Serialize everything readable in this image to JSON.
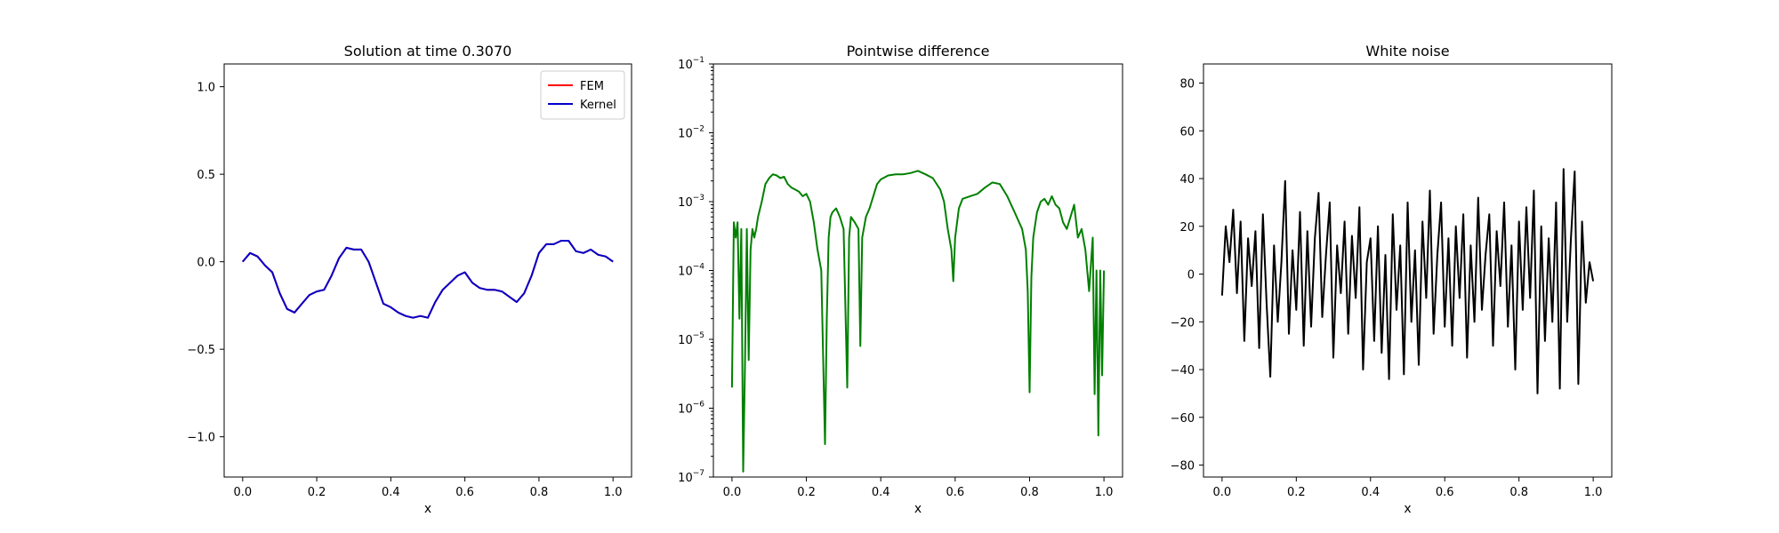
{
  "chart_data": [
    {
      "type": "line",
      "title": "Solution at time 0.3070",
      "xlabel": "x",
      "ylabel": "",
      "xlim": [
        -0.05,
        1.05
      ],
      "ylim": [
        -1.23,
        1.13
      ],
      "x_ticks": [
        "0.0",
        "0.2",
        "0.4",
        "0.6",
        "0.8",
        "1.0"
      ],
      "y_ticks": [
        "−1.0",
        "−0.5",
        "0.0",
        "0.5",
        "1.0"
      ],
      "y_tick_values": [
        -1.0,
        -0.5,
        0.0,
        0.5,
        1.0
      ],
      "grid": false,
      "legend": {
        "position": "top-right",
        "entries": [
          "FEM",
          "Kernel"
        ]
      },
      "series": [
        {
          "name": "FEM",
          "color": "#ff0000",
          "x": [
            0.0,
            0.02,
            0.04,
            0.06,
            0.08,
            0.1,
            0.12,
            0.14,
            0.16,
            0.18,
            0.2,
            0.22,
            0.24,
            0.26,
            0.28,
            0.3,
            0.32,
            0.34,
            0.36,
            0.38,
            0.4,
            0.42,
            0.44,
            0.46,
            0.48,
            0.5,
            0.52,
            0.54,
            0.56,
            0.58,
            0.6,
            0.62,
            0.64,
            0.66,
            0.68,
            0.7,
            0.72,
            0.74,
            0.76,
            0.78,
            0.8,
            0.82,
            0.84,
            0.86,
            0.88,
            0.9,
            0.92,
            0.94,
            0.96,
            0.98,
            1.0
          ],
          "y": [
            0.0,
            0.05,
            0.03,
            -0.02,
            -0.06,
            -0.18,
            -0.27,
            -0.29,
            -0.24,
            -0.19,
            -0.17,
            -0.16,
            -0.08,
            0.02,
            0.08,
            0.07,
            0.07,
            0.0,
            -0.12,
            -0.24,
            -0.26,
            -0.29,
            -0.31,
            -0.32,
            -0.31,
            -0.32,
            -0.23,
            -0.16,
            -0.12,
            -0.08,
            -0.06,
            -0.12,
            -0.15,
            -0.16,
            -0.16,
            -0.17,
            -0.2,
            -0.23,
            -0.18,
            -0.08,
            0.05,
            0.1,
            0.1,
            0.12,
            0.12,
            0.06,
            0.05,
            0.07,
            0.04,
            0.03,
            0.0
          ]
        },
        {
          "name": "Kernel",
          "color": "#0000cc",
          "x": [
            0.0,
            0.02,
            0.04,
            0.06,
            0.08,
            0.1,
            0.12,
            0.14,
            0.16,
            0.18,
            0.2,
            0.22,
            0.24,
            0.26,
            0.28,
            0.3,
            0.32,
            0.34,
            0.36,
            0.38,
            0.4,
            0.42,
            0.44,
            0.46,
            0.48,
            0.5,
            0.52,
            0.54,
            0.56,
            0.58,
            0.6,
            0.62,
            0.64,
            0.66,
            0.68,
            0.7,
            0.72,
            0.74,
            0.76,
            0.78,
            0.8,
            0.82,
            0.84,
            0.86,
            0.88,
            0.9,
            0.92,
            0.94,
            0.96,
            0.98,
            1.0
          ],
          "y": [
            0.0,
            0.05,
            0.03,
            -0.02,
            -0.06,
            -0.18,
            -0.27,
            -0.29,
            -0.24,
            -0.19,
            -0.17,
            -0.16,
            -0.08,
            0.02,
            0.08,
            0.07,
            0.07,
            0.0,
            -0.12,
            -0.24,
            -0.26,
            -0.29,
            -0.31,
            -0.32,
            -0.31,
            -0.32,
            -0.23,
            -0.16,
            -0.12,
            -0.08,
            -0.06,
            -0.12,
            -0.15,
            -0.16,
            -0.16,
            -0.17,
            -0.2,
            -0.23,
            -0.18,
            -0.08,
            0.05,
            0.1,
            0.1,
            0.12,
            0.12,
            0.06,
            0.05,
            0.07,
            0.04,
            0.03,
            0.0
          ]
        }
      ]
    },
    {
      "type": "line",
      "title": "Pointwise difference",
      "xlabel": "x",
      "ylabel": "",
      "y_scale": "log",
      "xlim": [
        -0.05,
        1.05
      ],
      "ylim": [
        1e-07,
        0.1
      ],
      "x_ticks": [
        "0.0",
        "0.2",
        "0.4",
        "0.6",
        "0.8",
        "1.0"
      ],
      "y_ticks": [
        {
          "base": "10",
          "exp": "−7",
          "value": 1e-07
        },
        {
          "base": "10",
          "exp": "−6",
          "value": 1e-06
        },
        {
          "base": "10",
          "exp": "−5",
          "value": 1e-05
        },
        {
          "base": "10",
          "exp": "−4",
          "value": 0.0001
        },
        {
          "base": "10",
          "exp": "−3",
          "value": 0.001
        },
        {
          "base": "10",
          "exp": "−2",
          "value": 0.01
        },
        {
          "base": "10",
          "exp": "−1",
          "value": 0.1
        }
      ],
      "grid": false,
      "series": [
        {
          "color": "#008000",
          "x": [
            0.0,
            0.005,
            0.01,
            0.015,
            0.02,
            0.025,
            0.03,
            0.035,
            0.04,
            0.045,
            0.05,
            0.055,
            0.06,
            0.065,
            0.07,
            0.08,
            0.09,
            0.1,
            0.11,
            0.12,
            0.13,
            0.14,
            0.15,
            0.16,
            0.17,
            0.18,
            0.19,
            0.2,
            0.21,
            0.22,
            0.23,
            0.24,
            0.25,
            0.255,
            0.26,
            0.265,
            0.27,
            0.28,
            0.29,
            0.3,
            0.31,
            0.315,
            0.32,
            0.33,
            0.34,
            0.345,
            0.35,
            0.36,
            0.37,
            0.38,
            0.39,
            0.4,
            0.42,
            0.44,
            0.46,
            0.48,
            0.5,
            0.52,
            0.54,
            0.56,
            0.57,
            0.58,
            0.59,
            0.595,
            0.6,
            0.61,
            0.62,
            0.64,
            0.66,
            0.68,
            0.7,
            0.72,
            0.74,
            0.76,
            0.78,
            0.79,
            0.795,
            0.8,
            0.805,
            0.81,
            0.82,
            0.83,
            0.84,
            0.85,
            0.86,
            0.87,
            0.88,
            0.89,
            0.9,
            0.91,
            0.92,
            0.93,
            0.94,
            0.95,
            0.96,
            0.97,
            0.975,
            0.98,
            0.985,
            0.99,
            0.995,
            1.0
          ],
          "y": [
            2e-06,
            0.0005,
            0.0003,
            0.0005,
            2e-05,
            0.0004,
            1.2e-07,
            4e-06,
            0.0004,
            5e-06,
            0.0002,
            0.0004,
            0.0003,
            0.0004,
            0.0006,
            0.001,
            0.0018,
            0.0022,
            0.0025,
            0.0024,
            0.0022,
            0.0023,
            0.0018,
            0.0016,
            0.0015,
            0.0014,
            0.0012,
            0.0013,
            0.001,
            0.0005,
            0.0002,
            0.0001,
            3e-07,
            2e-05,
            0.0003,
            0.0006,
            0.0007,
            0.0008,
            0.0006,
            0.0004,
            2e-06,
            0.0003,
            0.0006,
            0.0005,
            0.0004,
            8e-06,
            0.0003,
            0.0006,
            0.0008,
            0.0012,
            0.0018,
            0.0021,
            0.0024,
            0.0025,
            0.0025,
            0.0026,
            0.0028,
            0.0025,
            0.0022,
            0.0015,
            0.001,
            0.0004,
            0.0002,
            7e-05,
            0.0003,
            0.0008,
            0.0011,
            0.0012,
            0.0013,
            0.0016,
            0.0019,
            0.0018,
            0.0012,
            0.0007,
            0.0004,
            0.0002,
            5e-05,
            1.7e-06,
            8e-05,
            0.0003,
            0.0007,
            0.001,
            0.0011,
            0.0009,
            0.0012,
            0.0009,
            0.0008,
            0.0005,
            0.0004,
            0.0006,
            0.0009,
            0.0003,
            0.0004,
            0.0002,
            5e-05,
            0.0003,
            1.6e-06,
            0.0001,
            4e-07,
            0.0001,
            3e-06,
            0.0001
          ]
        }
      ]
    },
    {
      "type": "line",
      "title": "White noise",
      "xlabel": "x",
      "ylabel": "",
      "xlim": [
        -0.05,
        1.05
      ],
      "ylim": [
        -85,
        88
      ],
      "x_ticks": [
        "0.0",
        "0.2",
        "0.4",
        "0.6",
        "0.8",
        "1.0"
      ],
      "y_ticks": [
        "−80",
        "−60",
        "−40",
        "−20",
        "0",
        "20",
        "40",
        "60",
        "80"
      ],
      "y_tick_values": [
        -80,
        -60,
        -40,
        -20,
        0,
        20,
        40,
        60,
        80
      ],
      "grid": false,
      "series": [
        {
          "color": "#000000",
          "x": [
            0.0,
            0.01,
            0.02,
            0.03,
            0.04,
            0.05,
            0.06,
            0.07,
            0.08,
            0.09,
            0.1,
            0.11,
            0.12,
            0.13,
            0.14,
            0.15,
            0.16,
            0.17,
            0.18,
            0.19,
            0.2,
            0.21,
            0.22,
            0.23,
            0.24,
            0.25,
            0.26,
            0.27,
            0.28,
            0.29,
            0.3,
            0.31,
            0.32,
            0.33,
            0.34,
            0.35,
            0.36,
            0.37,
            0.38,
            0.39,
            0.4,
            0.41,
            0.42,
            0.43,
            0.44,
            0.45,
            0.46,
            0.47,
            0.48,
            0.49,
            0.5,
            0.51,
            0.52,
            0.53,
            0.54,
            0.55,
            0.56,
            0.57,
            0.58,
            0.59,
            0.6,
            0.61,
            0.62,
            0.63,
            0.64,
            0.65,
            0.66,
            0.67,
            0.68,
            0.69,
            0.7,
            0.71,
            0.72,
            0.73,
            0.74,
            0.75,
            0.76,
            0.77,
            0.78,
            0.79,
            0.8,
            0.81,
            0.82,
            0.83,
            0.84,
            0.85,
            0.86,
            0.87,
            0.88,
            0.89,
            0.9,
            0.91,
            0.92,
            0.93,
            0.94,
            0.95,
            0.96,
            0.97,
            0.98,
            0.99,
            1.0
          ],
          "y": [
            -9,
            20,
            5,
            27,
            -8,
            22,
            -28,
            15,
            -5,
            18,
            -31,
            25,
            -12,
            -43,
            12,
            -20,
            5,
            39,
            -25,
            10,
            -15,
            26,
            -30,
            18,
            -22,
            15,
            34,
            -18,
            8,
            30,
            -35,
            12,
            -8,
            22,
            -25,
            16,
            -10,
            28,
            -40,
            5,
            15,
            -28,
            20,
            -33,
            8,
            -44,
            25,
            -15,
            12,
            -42,
            30,
            -20,
            10,
            -38,
            22,
            -10,
            35,
            -25,
            8,
            30,
            -22,
            15,
            -30,
            20,
            -10,
            25,
            -35,
            12,
            -20,
            32,
            -15,
            8,
            25,
            -30,
            18,
            -5,
            30,
            -22,
            12,
            -40,
            22,
            -15,
            28,
            -10,
            35,
            -50,
            20,
            -28,
            15,
            -20,
            30,
            -48,
            44,
            -20,
            15,
            43,
            -46,
            22,
            -12,
            5,
            -3
          ]
        }
      ]
    }
  ]
}
